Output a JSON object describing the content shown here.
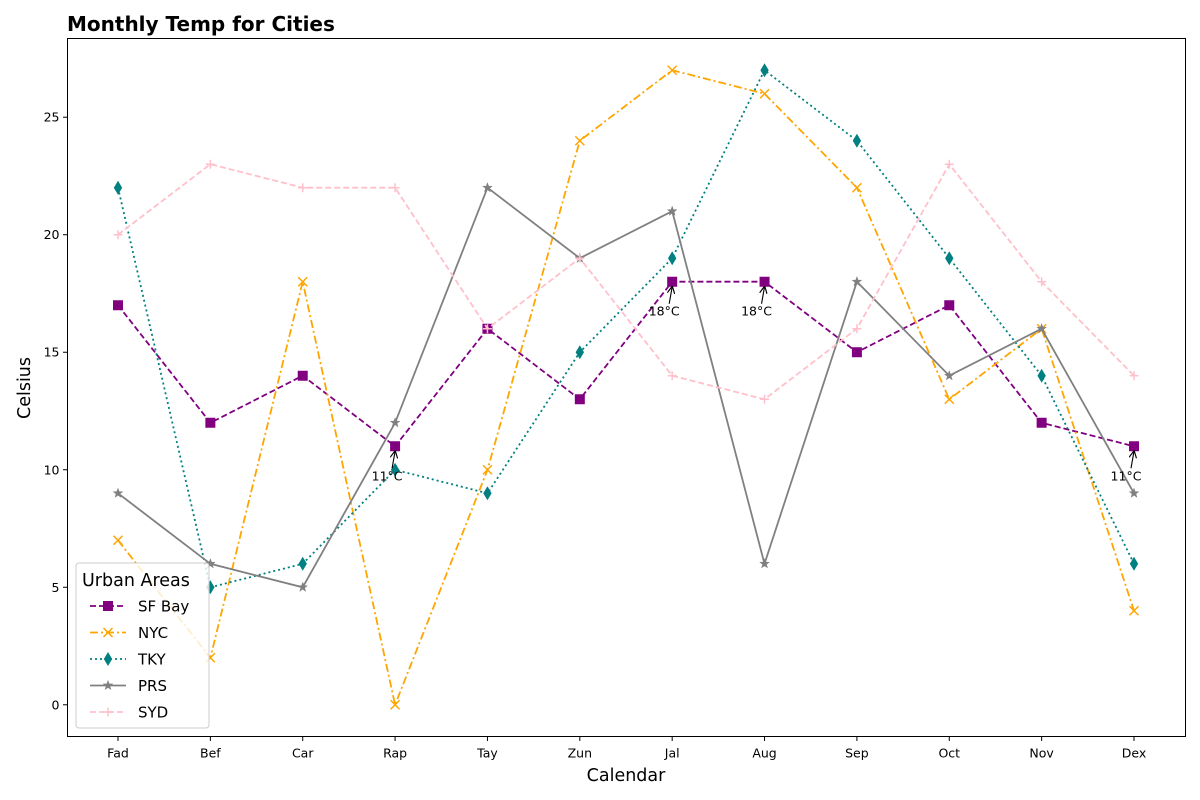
{
  "chart_data": {
    "type": "line",
    "title": "Monthly Temp for Cities",
    "xlabel": "Calendar",
    "ylabel": "Celsius",
    "categories": [
      "Fad",
      "Bef",
      "Car",
      "Rap",
      "Tay",
      "Zun",
      "Jal",
      "Aug",
      "Sep",
      "Oct",
      "Nov",
      "Dex"
    ],
    "yticks": [
      0,
      5,
      10,
      15,
      20,
      25
    ],
    "ylim": [
      -1.35,
      28.35
    ],
    "grid": false,
    "legend": {
      "title": "Urban Areas",
      "position": "lower-left"
    },
    "series": [
      {
        "name": "SF Bay",
        "color": "#800080",
        "dash": "dashed",
        "marker": "square",
        "values": [
          17,
          12,
          14,
          11,
          16,
          13,
          18,
          18,
          15,
          17,
          12,
          11
        ]
      },
      {
        "name": "NYC",
        "color": "#FFA500",
        "dash": "dashdot",
        "marker": "x",
        "values": [
          7,
          2,
          18,
          0,
          10,
          24,
          27,
          26,
          22,
          13,
          16,
          4
        ]
      },
      {
        "name": "TKY",
        "color": "#008080",
        "dash": "dotted",
        "marker": "thin-diamond",
        "values": [
          22,
          5,
          6,
          10,
          9,
          15,
          19,
          27,
          24,
          19,
          14,
          6
        ]
      },
      {
        "name": "PRS",
        "color": "#808080",
        "dash": "solid",
        "marker": "star",
        "values": [
          9,
          6,
          5,
          12,
          22,
          19,
          21,
          6,
          18,
          14,
          16,
          9
        ]
      },
      {
        "name": "SYD",
        "color": "#FFC0CB",
        "dash": "dashed",
        "marker": "plus",
        "values": [
          20,
          23,
          22,
          22,
          16,
          19,
          14,
          13,
          16,
          23,
          18,
          14
        ]
      }
    ],
    "annotations": [
      {
        "series": "SF Bay",
        "category": "Rap",
        "value": 11,
        "text": "11°C"
      },
      {
        "series": "SF Bay",
        "category": "Jal",
        "value": 18,
        "text": "18°C"
      },
      {
        "series": "SF Bay",
        "category": "Aug",
        "value": 18,
        "text": "18°C"
      },
      {
        "series": "SF Bay",
        "category": "Dex",
        "value": 11,
        "text": "11°C"
      }
    ]
  }
}
